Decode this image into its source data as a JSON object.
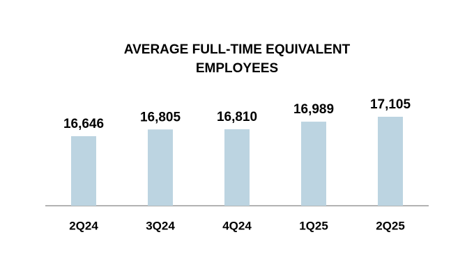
{
  "chart_data": {
    "type": "bar",
    "title": "AVERAGE FULL-TIME EQUIVALENT EMPLOYEES",
    "categories": [
      "2Q24",
      "3Q24",
      "4Q24",
      "1Q25",
      "2Q25"
    ],
    "values": [
      16646,
      16805,
      16810,
      16989,
      17105
    ],
    "value_labels": [
      "16,646",
      "16,805",
      "16,810",
      "16,989",
      "17,105"
    ],
    "color": "#bcd4e1",
    "ylim": [
      15000,
      17500
    ]
  }
}
